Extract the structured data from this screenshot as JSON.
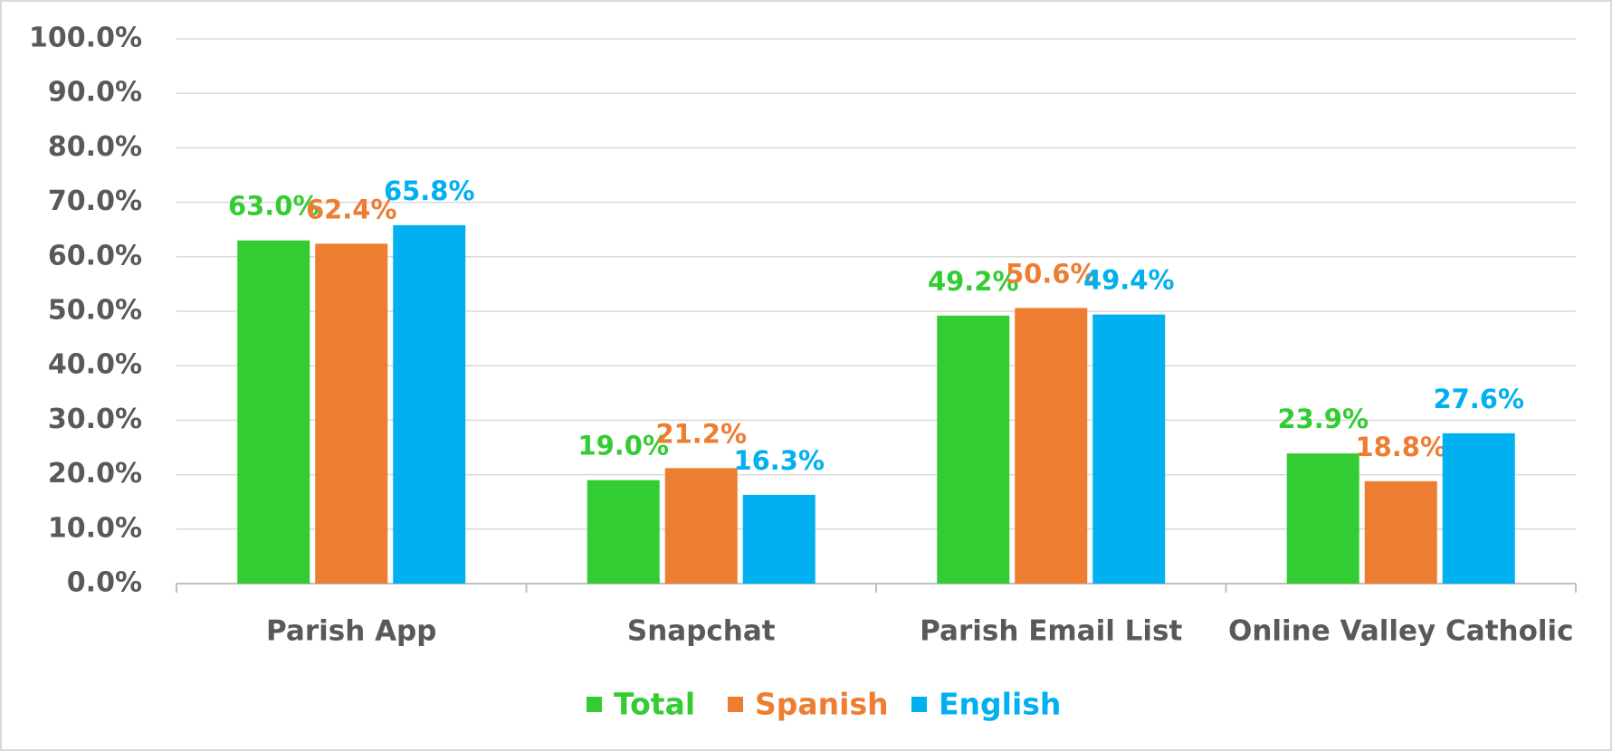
{
  "chart_data": {
    "type": "bar",
    "categories": [
      "Parish App",
      "Snapchat",
      "Parish Email List",
      "Online Valley Catholic"
    ],
    "series": [
      {
        "name": "Total",
        "color": "#33cc33",
        "values": [
          63.0,
          19.0,
          49.2,
          23.9
        ],
        "value_labels": [
          "63.0%",
          "19.0%",
          "49.2%",
          "23.9%"
        ]
      },
      {
        "name": "Spanish",
        "color": "#ed7d31",
        "values": [
          62.4,
          21.2,
          50.6,
          18.8
        ],
        "value_labels": [
          "62.4%",
          "21.2%",
          "50.6%",
          "18.8%"
        ]
      },
      {
        "name": "English",
        "color": "#00b0f0",
        "values": [
          65.8,
          16.3,
          49.4,
          27.6
        ],
        "value_labels": [
          "65.8%",
          "16.3%",
          "49.4%",
          "27.6%"
        ]
      }
    ],
    "ylim": [
      0,
      100
    ],
    "yticks": [
      {
        "value": 0,
        "label": "0.0%"
      },
      {
        "value": 10,
        "label": "10.0%"
      },
      {
        "value": 20,
        "label": "20.0%"
      },
      {
        "value": 30,
        "label": "30.0%"
      },
      {
        "value": 40,
        "label": "40.0%"
      },
      {
        "value": 50,
        "label": "50.0%"
      },
      {
        "value": 60,
        "label": "60.0%"
      },
      {
        "value": 70,
        "label": "70.0%"
      },
      {
        "value": 80,
        "label": "80.0%"
      },
      {
        "value": 90,
        "label": "90.0%"
      },
      {
        "value": 100,
        "label": "100.0%"
      }
    ],
    "grid": true,
    "legend": "bottom"
  }
}
